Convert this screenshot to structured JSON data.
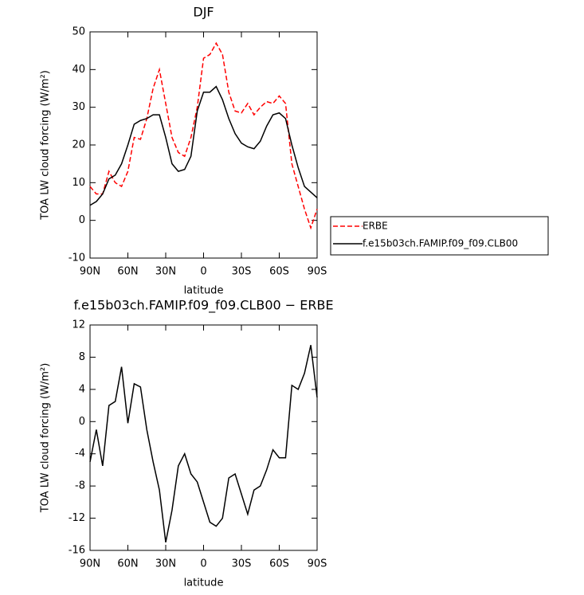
{
  "chart_data": [
    {
      "type": "line",
      "title": "DJF",
      "xlabel": "latitude",
      "ylabel": "TOA LW cloud forcing (W/m²)",
      "x": [
        90,
        85,
        80,
        75,
        70,
        65,
        60,
        55,
        50,
        45,
        40,
        35,
        30,
        25,
        20,
        15,
        10,
        5,
        0,
        -5,
        -10,
        -15,
        -20,
        -25,
        -30,
        -35,
        -40,
        -45,
        -50,
        -55,
        -60,
        -65,
        -70,
        -75,
        -80,
        -85,
        -90
      ],
      "xlim": [
        90,
        -90
      ],
      "xticks": [
        {
          "value": 90,
          "label": "90N"
        },
        {
          "value": 60,
          "label": "60N"
        },
        {
          "value": 30,
          "label": "30N"
        },
        0,
        {
          "value": -30,
          "label": "30S"
        },
        {
          "value": -60,
          "label": "60S"
        },
        {
          "value": -90,
          "label": "90S"
        }
      ],
      "ylim": [
        -10,
        50
      ],
      "yticks": [
        -10,
        0,
        10,
        20,
        30,
        40,
        50
      ],
      "legend": "right",
      "series": [
        {
          "name": "ERBE",
          "color": "#ff0000",
          "dash": true,
          "values": [
            9,
            7,
            7,
            13,
            10,
            9,
            13,
            22,
            21.5,
            27,
            35,
            40,
            31,
            22,
            18,
            17,
            22,
            30,
            43,
            44,
            47,
            44,
            34,
            29,
            28.5,
            31,
            28,
            30,
            31.5,
            31,
            33,
            31,
            15,
            9,
            3,
            -2,
            3
          ]
        },
        {
          "name": "f.e15b03ch.FAMIP.f09_f09.CLB00",
          "color": "#000000",
          "dash": false,
          "values": [
            4,
            5,
            7,
            11,
            12,
            15,
            20,
            25.5,
            26.5,
            27,
            28,
            28,
            22,
            15,
            13,
            13.5,
            17,
            29,
            34,
            34,
            35.5,
            32,
            27,
            23,
            20.5,
            19.5,
            19,
            21,
            25,
            28,
            28.5,
            27,
            20,
            14,
            9,
            7.5,
            6
          ]
        }
      ]
    },
    {
      "type": "line",
      "title": "f.e15b03ch.FAMIP.f09_f09.CLB00 − ERBE",
      "xlabel": "latitude",
      "ylabel": "TOA LW cloud forcing (W/m²)",
      "x": [
        90,
        85,
        80,
        75,
        70,
        65,
        60,
        55,
        50,
        45,
        40,
        35,
        30,
        25,
        20,
        15,
        10,
        5,
        0,
        -5,
        -10,
        -15,
        -20,
        -25,
        -30,
        -35,
        -40,
        -45,
        -50,
        -55,
        -60,
        -65,
        -70,
        -75,
        -80,
        -85,
        -90
      ],
      "xlim": [
        90,
        -90
      ],
      "xticks": [
        {
          "value": 90,
          "label": "90N"
        },
        {
          "value": 60,
          "label": "60N"
        },
        {
          "value": 30,
          "label": "30N"
        },
        0,
        {
          "value": -30,
          "label": "30S"
        },
        {
          "value": -60,
          "label": "60S"
        },
        {
          "value": -90,
          "label": "90S"
        }
      ],
      "ylim": [
        -16,
        12
      ],
      "yticks": [
        -16,
        -12,
        -8,
        -4,
        0,
        4,
        8,
        12
      ],
      "series": [
        {
          "color": "#000000",
          "dash": false,
          "values": [
            -5,
            -1,
            -5.5,
            2,
            2.5,
            6.8,
            -0.2,
            4.7,
            4.3,
            -1,
            -5,
            -8.5,
            -15,
            -11,
            -5.5,
            -4,
            -6.5,
            -7.5,
            -10,
            -12.5,
            -13,
            -12,
            -7,
            -6.5,
            -9,
            -11.5,
            -8.5,
            -8,
            -6,
            -3.5,
            -4.5,
            -4.5,
            4.5,
            4,
            6,
            9.5,
            3
          ]
        }
      ]
    }
  ]
}
